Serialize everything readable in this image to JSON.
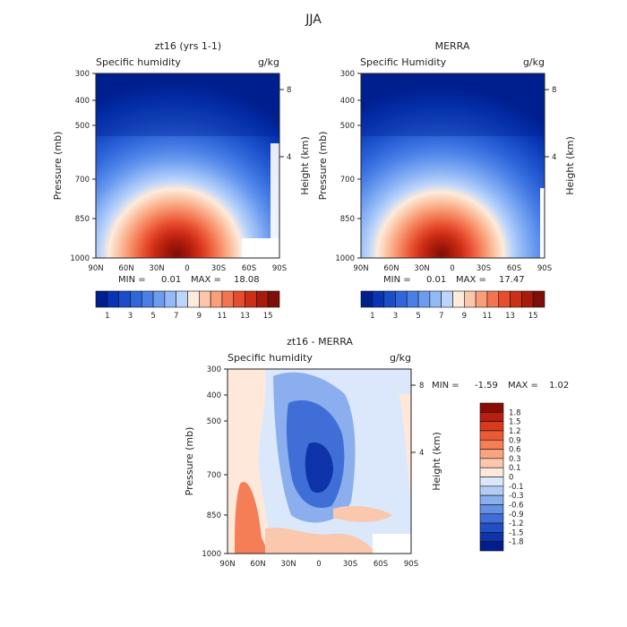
{
  "figure": {
    "title": "JJA"
  },
  "chart_data": [
    {
      "type": "heatmap",
      "title": "zt16 (yrs 1-1)",
      "subtitle_left": "Specific humidity",
      "units": "g/kg",
      "xlabel": "",
      "ylabel": "Pressure (mb)",
      "y2label": "Height (km)",
      "x_ticks": [
        "90N",
        "60N",
        "30N",
        "0",
        "30S",
        "60S",
        "90S"
      ],
      "y_ticks": [
        "300",
        "400",
        "500",
        "700",
        "850",
        "1000"
      ],
      "y_tick_values": [
        300,
        400,
        500,
        700,
        850,
        1000
      ],
      "y2_ticks": [
        "8",
        "4"
      ],
      "y2_tick_values": [
        8,
        4
      ],
      "min_label": "MIN =",
      "min_value": "0.01",
      "max_label": "MAX =",
      "max_value": "18.08",
      "xlim": [
        90,
        -90
      ],
      "ylim": [
        1000,
        300
      ],
      "peak_humidity_g_per_kg": 18.08,
      "peak_location": {
        "lat": 5,
        "pressure_mb": 990
      },
      "colorbar": {
        "orientation": "horizontal",
        "labels": [
          "1",
          "3",
          "5",
          "7",
          "9",
          "11",
          "13",
          "15"
        ],
        "colors": [
          "#001f8f",
          "#0634b4",
          "#1a4ec8",
          "#2f66da",
          "#4a80e6",
          "#6c9cef",
          "#93b9f6",
          "#bdd5fa",
          "#fdebdc",
          "#fbc7a8",
          "#f99e78",
          "#f37450",
          "#e64c2e",
          "#cc2e16",
          "#a91a0b",
          "#7d0f07"
        ]
      }
    },
    {
      "type": "heatmap",
      "title": "MERRA",
      "subtitle_left": "Specific Humidity",
      "units": "g/kg",
      "xlabel": "",
      "ylabel": "Pressure (mb)",
      "y2label": "Height (km)",
      "x_ticks": [
        "90N",
        "60N",
        "30N",
        "0",
        "30S",
        "60S",
        "90S"
      ],
      "y_ticks": [
        "300",
        "400",
        "500",
        "700",
        "850",
        "1000"
      ],
      "y_tick_values": [
        300,
        400,
        500,
        700,
        850,
        1000
      ],
      "y2_ticks": [
        "8",
        "4"
      ],
      "y2_tick_values": [
        8,
        4
      ],
      "min_label": "MIN =",
      "min_value": "0.01",
      "max_label": "MAX =",
      "max_value": "17.47",
      "xlim": [
        90,
        -90
      ],
      "ylim": [
        1000,
        300
      ],
      "peak_humidity_g_per_kg": 17.47,
      "peak_location": {
        "lat": 5,
        "pressure_mb": 990
      },
      "colorbar": {
        "orientation": "horizontal",
        "labels": [
          "1",
          "3",
          "5",
          "7",
          "9",
          "11",
          "13",
          "15"
        ],
        "colors": [
          "#001f8f",
          "#0634b4",
          "#1a4ec8",
          "#2f66da",
          "#4a80e6",
          "#6c9cef",
          "#93b9f6",
          "#bdd5fa",
          "#fdebdc",
          "#fbc7a8",
          "#f99e78",
          "#f37450",
          "#e64c2e",
          "#cc2e16",
          "#a91a0b",
          "#7d0f07"
        ]
      }
    },
    {
      "type": "heatmap",
      "title": "zt16 - MERRA",
      "subtitle_left": "Specific humidity",
      "units": "g/kg",
      "xlabel": "",
      "ylabel": "Pressure (mb)",
      "y2label": "Height (km)",
      "x_ticks": [
        "90N",
        "60N",
        "30N",
        "0",
        "30S",
        "60S",
        "90S"
      ],
      "y_ticks": [
        "300",
        "400",
        "500",
        "700",
        "850",
        "1000"
      ],
      "y_tick_values": [
        300,
        400,
        500,
        700,
        850,
        1000
      ],
      "y2_ticks": [
        "8",
        "4"
      ],
      "y2_tick_values": [
        8,
        4
      ],
      "min_label": "MIN =",
      "min_value": "-1.59",
      "max_label": "MAX =",
      "max_value": "1.02",
      "xlim": [
        90,
        -90
      ],
      "ylim": [
        1000,
        300
      ],
      "colorbar": {
        "orientation": "vertical",
        "labels": [
          "1.8",
          "1.5",
          "1.2",
          "0.9",
          "0.6",
          "0.3",
          "0.1",
          "0",
          "-0.1",
          "-0.3",
          "-0.6",
          "-0.9",
          "-1.2",
          "-1.5",
          "-1.8"
        ],
        "colors": [
          "#8b0b06",
          "#b81f10",
          "#d9391c",
          "#ec5a35",
          "#f57e57",
          "#f9a481",
          "#fbc8ad",
          "#fde8da",
          "#dbe8fb",
          "#b3ccf6",
          "#8aaeee",
          "#6390e4",
          "#3f6fd6",
          "#224fc4",
          "#0f33a8",
          "#041d8a"
        ]
      }
    }
  ]
}
